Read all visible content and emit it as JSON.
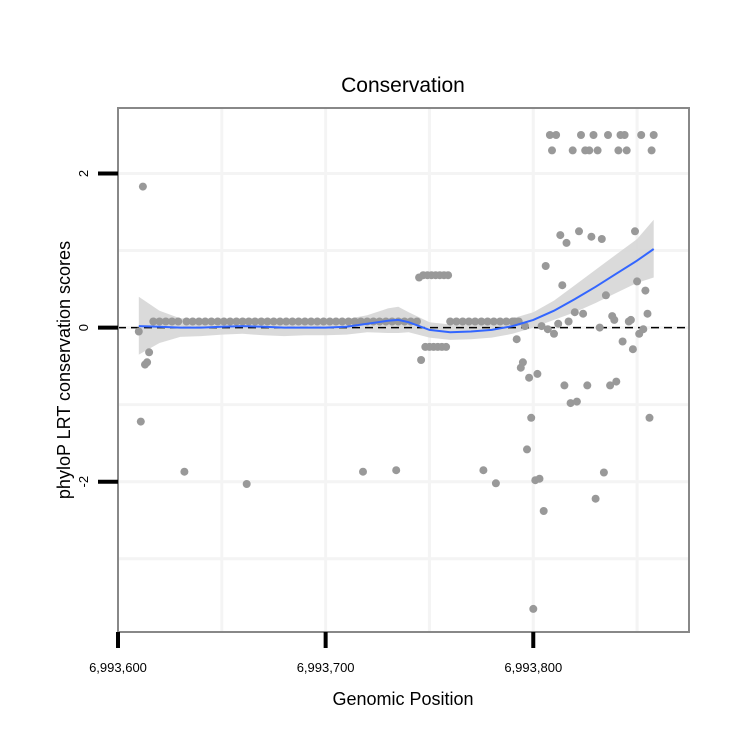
{
  "chart_data": {
    "type": "scatter",
    "title": "Conservation",
    "xlabel": "Genomic Position",
    "ylabel": "phyloP LRT conservation scores",
    "xlim": [
      6993600,
      6993875
    ],
    "ylim": [
      -3.95,
      2.85
    ],
    "x_ticks": [
      6993600,
      6993700,
      6993800
    ],
    "x_tick_labels": [
      "6,993,600",
      "6,993,700",
      "6,993,800"
    ],
    "y_ticks": [
      -2,
      0,
      2
    ],
    "y_tick_labels": [
      "-2",
      "0",
      "2"
    ],
    "grid": true,
    "reference_line": {
      "y": 0,
      "style": "dashed"
    },
    "colors": {
      "points": "#999999",
      "smooth": "#3366ff",
      "ribbon": "#d4d4d4",
      "panel_border": "#888888",
      "grid": "#f4f4f4"
    },
    "points": [
      {
        "x": 6993610,
        "y": -0.05
      },
      {
        "x": 6993611,
        "y": -1.22
      },
      {
        "x": 6993612,
        "y": 1.83
      },
      {
        "x": 6993613,
        "y": -0.48
      },
      {
        "x": 6993614,
        "y": -0.45
      },
      {
        "x": 6993615,
        "y": -0.32
      },
      {
        "x": 6993617,
        "y": 0.08
      },
      {
        "x": 6993620,
        "y": 0.08
      },
      {
        "x": 6993623,
        "y": 0.08
      },
      {
        "x": 6993626,
        "y": 0.08
      },
      {
        "x": 6993629,
        "y": 0.08
      },
      {
        "x": 6993632,
        "y": -1.87
      },
      {
        "x": 6993633,
        "y": 0.08
      },
      {
        "x": 6993636,
        "y": 0.08
      },
      {
        "x": 6993639,
        "y": 0.08
      },
      {
        "x": 6993642,
        "y": 0.08
      },
      {
        "x": 6993645,
        "y": 0.08
      },
      {
        "x": 6993648,
        "y": 0.08
      },
      {
        "x": 6993651,
        "y": 0.08
      },
      {
        "x": 6993654,
        "y": 0.08
      },
      {
        "x": 6993657,
        "y": 0.08
      },
      {
        "x": 6993660,
        "y": 0.08
      },
      {
        "x": 6993662,
        "y": -2.03
      },
      {
        "x": 6993663,
        "y": 0.08
      },
      {
        "x": 6993666,
        "y": 0.08
      },
      {
        "x": 6993669,
        "y": 0.08
      },
      {
        "x": 6993672,
        "y": 0.08
      },
      {
        "x": 6993675,
        "y": 0.08
      },
      {
        "x": 6993678,
        "y": 0.08
      },
      {
        "x": 6993681,
        "y": 0.08
      },
      {
        "x": 6993684,
        "y": 0.08
      },
      {
        "x": 6993687,
        "y": 0.08
      },
      {
        "x": 6993690,
        "y": 0.08
      },
      {
        "x": 6993693,
        "y": 0.08
      },
      {
        "x": 6993696,
        "y": 0.08
      },
      {
        "x": 6993699,
        "y": 0.08
      },
      {
        "x": 6993702,
        "y": 0.08
      },
      {
        "x": 6993705,
        "y": 0.08
      },
      {
        "x": 6993708,
        "y": 0.08
      },
      {
        "x": 6993711,
        "y": 0.08
      },
      {
        "x": 6993714,
        "y": 0.08
      },
      {
        "x": 6993717,
        "y": 0.08
      },
      {
        "x": 6993718,
        "y": -1.87
      },
      {
        "x": 6993720,
        "y": 0.08
      },
      {
        "x": 6993723,
        "y": 0.08
      },
      {
        "x": 6993726,
        "y": 0.08
      },
      {
        "x": 6993729,
        "y": 0.08
      },
      {
        "x": 6993732,
        "y": 0.08
      },
      {
        "x": 6993734,
        "y": -1.85
      },
      {
        "x": 6993735,
        "y": 0.08
      },
      {
        "x": 6993738,
        "y": 0.08
      },
      {
        "x": 6993741,
        "y": 0.08
      },
      {
        "x": 6993744,
        "y": 0.08
      },
      {
        "x": 6993745,
        "y": 0.65
      },
      {
        "x": 6993746,
        "y": -0.42
      },
      {
        "x": 6993747,
        "y": 0.68
      },
      {
        "x": 6993748,
        "y": -0.25
      },
      {
        "x": 6993749,
        "y": 0.68
      },
      {
        "x": 6993750,
        "y": -0.25
      },
      {
        "x": 6993751,
        "y": 0.68
      },
      {
        "x": 6993752,
        "y": -0.25
      },
      {
        "x": 6993753,
        "y": 0.68
      },
      {
        "x": 6993754,
        "y": -0.25
      },
      {
        "x": 6993755,
        "y": 0.68
      },
      {
        "x": 6993756,
        "y": -0.25
      },
      {
        "x": 6993757,
        "y": 0.68
      },
      {
        "x": 6993758,
        "y": -0.25
      },
      {
        "x": 6993759,
        "y": 0.68
      },
      {
        "x": 6993760,
        "y": 0.08
      },
      {
        "x": 6993763,
        "y": 0.08
      },
      {
        "x": 6993766,
        "y": 0.08
      },
      {
        "x": 6993769,
        "y": 0.08
      },
      {
        "x": 6993772,
        "y": 0.08
      },
      {
        "x": 6993775,
        "y": 0.08
      },
      {
        "x": 6993776,
        "y": -1.85
      },
      {
        "x": 6993778,
        "y": 0.08
      },
      {
        "x": 6993781,
        "y": 0.08
      },
      {
        "x": 6993782,
        "y": -2.02
      },
      {
        "x": 6993784,
        "y": 0.08
      },
      {
        "x": 6993787,
        "y": 0.08
      },
      {
        "x": 6993790,
        "y": 0.08
      },
      {
        "x": 6993791,
        "y": 0.08
      },
      {
        "x": 6993792,
        "y": -0.15
      },
      {
        "x": 6993793,
        "y": 0.08
      },
      {
        "x": 6993794,
        "y": -0.52
      },
      {
        "x": 6993795,
        "y": -0.45
      },
      {
        "x": 6993796,
        "y": 0.02
      },
      {
        "x": 6993797,
        "y": -1.58
      },
      {
        "x": 6993798,
        "y": -0.65
      },
      {
        "x": 6993799,
        "y": -1.17
      },
      {
        "x": 6993800,
        "y": -3.65
      },
      {
        "x": 6993801,
        "y": -1.98
      },
      {
        "x": 6993802,
        "y": -0.6
      },
      {
        "x": 6993803,
        "y": -1.96
      },
      {
        "x": 6993804,
        "y": 0.02
      },
      {
        "x": 6993805,
        "y": -2.38
      },
      {
        "x": 6993806,
        "y": 0.8
      },
      {
        "x": 6993807,
        "y": -0.02
      },
      {
        "x": 6993808,
        "y": 2.5
      },
      {
        "x": 6993809,
        "y": 2.3
      },
      {
        "x": 6993810,
        "y": -0.08
      },
      {
        "x": 6993811,
        "y": 2.5
      },
      {
        "x": 6993812,
        "y": 0.05
      },
      {
        "x": 6993813,
        "y": 1.2
      },
      {
        "x": 6993814,
        "y": 0.55
      },
      {
        "x": 6993815,
        "y": -0.75
      },
      {
        "x": 6993816,
        "y": 1.1
      },
      {
        "x": 6993817,
        "y": 0.08
      },
      {
        "x": 6993818,
        "y": -0.98
      },
      {
        "x": 6993819,
        "y": 2.3
      },
      {
        "x": 6993820,
        "y": 0.2
      },
      {
        "x": 6993821,
        "y": -0.96
      },
      {
        "x": 6993822,
        "y": 1.25
      },
      {
        "x": 6993823,
        "y": 2.5
      },
      {
        "x": 6993824,
        "y": 0.18
      },
      {
        "x": 6993825,
        "y": 2.3
      },
      {
        "x": 6993826,
        "y": -0.75
      },
      {
        "x": 6993827,
        "y": 2.3
      },
      {
        "x": 6993828,
        "y": 1.18
      },
      {
        "x": 6993829,
        "y": 2.5
      },
      {
        "x": 6993830,
        "y": -2.22
      },
      {
        "x": 6993831,
        "y": 2.3
      },
      {
        "x": 6993832,
        "y": 0.0
      },
      {
        "x": 6993833,
        "y": 1.15
      },
      {
        "x": 6993834,
        "y": -1.88
      },
      {
        "x": 6993835,
        "y": 0.42
      },
      {
        "x": 6993836,
        "y": 2.5
      },
      {
        "x": 6993837,
        "y": -0.75
      },
      {
        "x": 6993838,
        "y": 0.15
      },
      {
        "x": 6993839,
        "y": 0.1
      },
      {
        "x": 6993840,
        "y": -0.7
      },
      {
        "x": 6993841,
        "y": 2.3
      },
      {
        "x": 6993842,
        "y": 2.5
      },
      {
        "x": 6993843,
        "y": -0.18
      },
      {
        "x": 6993844,
        "y": 2.5
      },
      {
        "x": 6993845,
        "y": 2.3
      },
      {
        "x": 6993846,
        "y": 0.08
      },
      {
        "x": 6993847,
        "y": 0.1
      },
      {
        "x": 6993848,
        "y": -0.28
      },
      {
        "x": 6993849,
        "y": 1.25
      },
      {
        "x": 6993850,
        "y": 0.6
      },
      {
        "x": 6993851,
        "y": -0.08
      },
      {
        "x": 6993852,
        "y": 2.5
      },
      {
        "x": 6993853,
        "y": -0.02
      },
      {
        "x": 6993854,
        "y": 0.48
      },
      {
        "x": 6993855,
        "y": 0.18
      },
      {
        "x": 6993856,
        "y": -1.17
      },
      {
        "x": 6993857,
        "y": 2.3
      },
      {
        "x": 6993858,
        "y": 2.5
      }
    ],
    "smooth": {
      "x": [
        6993610,
        6993620,
        6993630,
        6993640,
        6993650,
        6993660,
        6993670,
        6993680,
        6993690,
        6993700,
        6993710,
        6993720,
        6993730,
        6993735,
        6993740,
        6993750,
        6993760,
        6993770,
        6993780,
        6993790,
        6993800,
        6993810,
        6993820,
        6993830,
        6993840,
        6993850,
        6993858
      ],
      "y": [
        0.02,
        0.01,
        0.0,
        0.0,
        0.01,
        0.02,
        0.01,
        0.0,
        0.0,
        0.0,
        0.01,
        0.05,
        0.09,
        0.1,
        0.07,
        -0.03,
        -0.06,
        -0.05,
        -0.03,
        0.02,
        0.1,
        0.22,
        0.37,
        0.53,
        0.7,
        0.87,
        1.02
      ],
      "upper": [
        0.4,
        0.22,
        0.12,
        0.11,
        0.11,
        0.12,
        0.12,
        0.11,
        0.1,
        0.1,
        0.11,
        0.16,
        0.25,
        0.27,
        0.2,
        0.07,
        0.04,
        0.05,
        0.07,
        0.12,
        0.2,
        0.35,
        0.55,
        0.75,
        0.95,
        1.15,
        1.4
      ],
      "lower": [
        -0.35,
        -0.2,
        -0.12,
        -0.11,
        -0.09,
        -0.08,
        -0.1,
        -0.11,
        -0.1,
        -0.1,
        -0.09,
        -0.06,
        -0.07,
        -0.07,
        -0.06,
        -0.13,
        -0.16,
        -0.15,
        -0.13,
        -0.08,
        0.0,
        0.1,
        0.2,
        0.32,
        0.45,
        0.58,
        0.65
      ]
    }
  }
}
